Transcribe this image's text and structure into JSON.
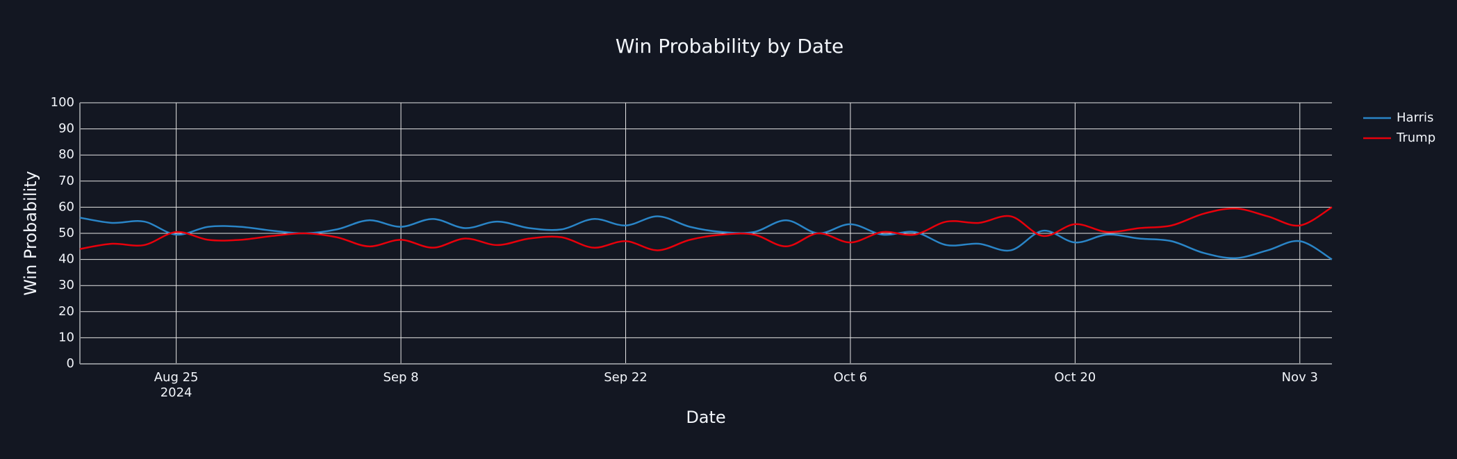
{
  "chart_data": {
    "type": "line",
    "title": "Win Probability by Date",
    "x_label": "Date",
    "y_label": "Win Probability",
    "x": [
      "2024-08-19",
      "2024-08-21",
      "2024-08-23",
      "2024-08-25",
      "2024-08-27",
      "2024-08-29",
      "2024-08-31",
      "2024-09-02",
      "2024-09-04",
      "2024-09-06",
      "2024-09-08",
      "2024-09-10",
      "2024-09-12",
      "2024-09-14",
      "2024-09-16",
      "2024-09-18",
      "2024-09-20",
      "2024-09-22",
      "2024-09-24",
      "2024-09-26",
      "2024-09-28",
      "2024-09-30",
      "2024-10-02",
      "2024-10-04",
      "2024-10-06",
      "2024-10-08",
      "2024-10-10",
      "2024-10-12",
      "2024-10-14",
      "2024-10-16",
      "2024-10-18",
      "2024-10-20",
      "2024-10-22",
      "2024-10-24",
      "2024-10-26",
      "2024-10-28",
      "2024-10-30",
      "2024-11-01",
      "2024-11-03",
      "2024-11-05"
    ],
    "series": [
      {
        "name": "Harris",
        "color": "#2a85c7",
        "values": [
          56,
          54,
          54.5,
          49.5,
          52.5,
          52.5,
          51,
          50,
          51.5,
          55,
          52.5,
          55.5,
          52,
          54.5,
          52,
          51.5,
          55.5,
          53,
          56.5,
          52.5,
          50.5,
          50.5,
          55,
          50,
          53.5,
          49.5,
          50.5,
          45.5,
          46,
          43.5,
          51,
          46.5,
          49.5,
          48,
          47,
          42.5,
          40.5,
          43.5,
          47,
          40
        ]
      },
      {
        "name": "Trump",
        "color": "#e8000b",
        "values": [
          44,
          46,
          45.5,
          50.5,
          47.5,
          47.5,
          49,
          50,
          48.5,
          45,
          47.5,
          44.5,
          48,
          45.5,
          48,
          48.5,
          44.5,
          47,
          43.5,
          47.5,
          49.5,
          49.5,
          45,
          50,
          46.5,
          50.5,
          49.5,
          54.5,
          54,
          56.5,
          49,
          53.5,
          50.5,
          52,
          53,
          57.5,
          59.5,
          56.5,
          53,
          60
        ]
      }
    ],
    "xlim": [
      "2024-08-19",
      "2024-11-05"
    ],
    "xticks": [
      {
        "value": "2024-08-25",
        "label": "Aug 25\n2024"
      },
      {
        "value": "2024-09-08",
        "label": "Sep 8"
      },
      {
        "value": "2024-09-22",
        "label": "Sep 22"
      },
      {
        "value": "2024-10-06",
        "label": "Oct 6"
      },
      {
        "value": "2024-10-20",
        "label": "Oct 20"
      },
      {
        "value": "2024-11-03",
        "label": "Nov 3"
      }
    ],
    "ylim": [
      0,
      100
    ],
    "yticks": [
      0,
      10,
      20,
      30,
      40,
      50,
      60,
      70,
      80,
      90,
      100
    ],
    "grid": true,
    "legend": "top-right"
  }
}
